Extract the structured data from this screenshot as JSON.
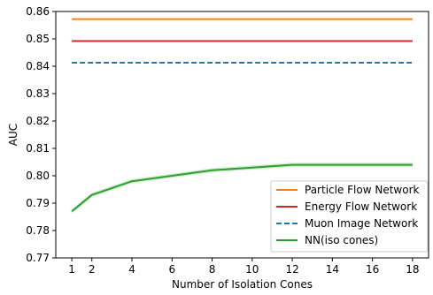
{
  "chart_data": {
    "type": "line",
    "title": "",
    "xlabel": "Number of Isolation Cones",
    "ylabel": "AUC",
    "x_ticks": [
      1,
      2,
      4,
      6,
      8,
      10,
      12,
      14,
      16,
      18
    ],
    "y_ticks": [
      "0.77",
      "0.78",
      "0.79",
      "0.80",
      "0.81",
      "0.82",
      "0.83",
      "0.84",
      "0.85",
      "0.86"
    ],
    "xlim": [
      0.2,
      18.8
    ],
    "ylim": [
      0.77,
      0.86
    ],
    "grid": false,
    "legend_position": "lower right",
    "series": [
      {
        "name": "Particle Flow Network",
        "color": "#ff7f0e",
        "style": "solid",
        "x": [
          1,
          18
        ],
        "y": [
          0.8572,
          0.8572
        ]
      },
      {
        "name": "Energy Flow Network",
        "color": "#d62728",
        "style": "solid",
        "x": [
          1,
          18
        ],
        "y": [
          0.8492,
          0.8492
        ]
      },
      {
        "name": "Muon Image Network",
        "color": "#1f77b4",
        "style": "dashed",
        "x": [
          1,
          18
        ],
        "y": [
          0.8413,
          0.8413
        ]
      },
      {
        "name": "NN(iso cones)",
        "color": "#2ca02c",
        "style": "solid",
        "x": [
          1,
          2,
          4,
          6,
          8,
          10,
          12,
          14,
          16,
          18
        ],
        "y": [
          0.787,
          0.793,
          0.798,
          0.8,
          0.802,
          0.803,
          0.804,
          0.804,
          0.804,
          0.804
        ]
      }
    ]
  }
}
